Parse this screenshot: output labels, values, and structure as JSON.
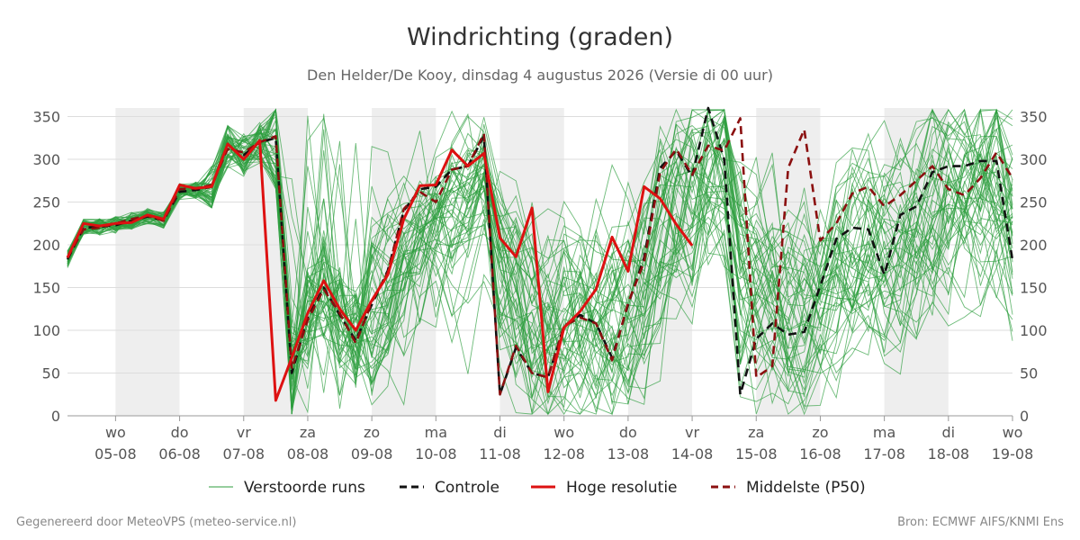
{
  "chart_data": {
    "type": "line",
    "title": "Windrichting (graden)",
    "subtitle": "Den Helder/De Kooy, dinsdag  4 augustus 2026 (Versie di 00 uur)",
    "ylim": [
      0,
      360
    ],
    "yticks": [
      0,
      50,
      100,
      150,
      200,
      250,
      300,
      350
    ],
    "x_range_days": [
      -0.75,
      14.0
    ],
    "x_ticks": [
      {
        "day": 0,
        "label1": "wo",
        "label2": "05-08"
      },
      {
        "day": 1,
        "label1": "do",
        "label2": "06-08"
      },
      {
        "day": 2,
        "label1": "vr",
        "label2": "07-08"
      },
      {
        "day": 3,
        "label1": "za",
        "label2": "08-08"
      },
      {
        "day": 4,
        "label1": "zo",
        "label2": "09-08"
      },
      {
        "day": 5,
        "label1": "ma",
        "label2": "10-08"
      },
      {
        "day": 6,
        "label1": "di",
        "label2": "11-08"
      },
      {
        "day": 7,
        "label1": "wo",
        "label2": "12-08"
      },
      {
        "day": 8,
        "label1": "do",
        "label2": "13-08"
      },
      {
        "day": 9,
        "label1": "vr",
        "label2": "14-08"
      },
      {
        "day": 10,
        "label1": "za",
        "label2": "15-08"
      },
      {
        "day": 11,
        "label1": "zo",
        "label2": "16-08"
      },
      {
        "day": 12,
        "label1": "ma",
        "label2": "17-08"
      },
      {
        "day": 13,
        "label1": "di",
        "label2": "18-08"
      },
      {
        "day": 14,
        "label1": "wo",
        "label2": "19-08"
      }
    ],
    "shaded_days": [
      [
        0,
        1
      ],
      [
        2,
        3
      ],
      [
        4,
        5
      ],
      [
        6,
        7
      ],
      [
        8,
        9
      ],
      [
        10,
        11
      ],
      [
        12,
        13
      ]
    ],
    "grid": true,
    "legend_position": "bottom",
    "series": [
      {
        "name": "Hoge resolutie",
        "color": "#dd1111",
        "style": "solid",
        "x": [
          -0.75,
          -0.5,
          -0.25,
          0,
          0.25,
          0.5,
          0.75,
          1,
          1.25,
          1.5,
          1.75,
          2,
          2.25,
          2.5,
          2.75,
          3,
          3.25,
          3.5,
          3.75,
          4,
          4.25,
          4.5,
          4.75,
          5,
          5.25,
          5.5,
          5.75,
          6,
          6.25,
          6.5,
          6.75,
          7,
          7.25,
          7.5,
          7.75,
          8,
          8.25,
          8.5,
          8.75,
          9
        ],
        "values": [
          185,
          225,
          222,
          225,
          226,
          235,
          230,
          270,
          266,
          268,
          318,
          300,
          322,
          18,
          68,
          120,
          158,
          125,
          100,
          135,
          165,
          230,
          269,
          270,
          311,
          292,
          307,
          208,
          186,
          243,
          28,
          103,
          122,
          148,
          209,
          169,
          268,
          254,
          224,
          199
        ]
      },
      {
        "name": "Controle",
        "color": "#111111",
        "style": "dashed",
        "x": [
          -0.75,
          -0.5,
          -0.25,
          0,
          0.25,
          0.5,
          0.75,
          1,
          1.25,
          1.5,
          1.75,
          2,
          2.25,
          2.5,
          2.75,
          3,
          3.25,
          3.5,
          3.75,
          4,
          4.25,
          4.5,
          4.75,
          5,
          5.25,
          5.5,
          5.75,
          6,
          6.25,
          6.5,
          6.75,
          7,
          7.25,
          7.5,
          7.75,
          8,
          8.25,
          8.5,
          8.75,
          9,
          9.25,
          9.5,
          9.75,
          10,
          10.25,
          10.5,
          10.75,
          11,
          11.25,
          11.5,
          11.75,
          12,
          12.25,
          12.5,
          12.75,
          13,
          13.25,
          13.5,
          13.75,
          14
        ],
        "values": [
          183,
          220,
          221,
          223,
          228,
          233,
          229,
          262,
          264,
          268,
          315,
          305,
          320,
          325,
          50,
          115,
          150,
          118,
          88,
          130,
          170,
          240,
          265,
          268,
          288,
          292,
          327,
          25,
          80,
          50,
          45,
          105,
          118,
          108,
          68,
          130,
          185,
          290,
          310,
          280,
          360,
          300,
          25,
          90,
          108,
          95,
          98,
          152,
          207,
          220,
          218,
          165,
          235,
          245,
          285,
          292,
          292,
          298,
          298,
          182
        ]
      },
      {
        "name": "Middelste (P50)",
        "color": "#8b1010",
        "style": "dashed",
        "x": [
          -0.75,
          -0.5,
          -0.25,
          0,
          0.25,
          0.5,
          0.75,
          1,
          1.25,
          1.5,
          1.75,
          2,
          2.25,
          2.5,
          2.75,
          3,
          3.25,
          3.5,
          3.75,
          4,
          4.25,
          4.5,
          4.75,
          5,
          5.25,
          5.5,
          5.75,
          6,
          6.25,
          6.5,
          6.75,
          7,
          7.25,
          7.5,
          7.75,
          8,
          8.25,
          8.5,
          8.75,
          9,
          9.25,
          9.5,
          9.75,
          10,
          10.25,
          10.5,
          10.75,
          11,
          11.25,
          11.5,
          11.75,
          12,
          12.25,
          12.5,
          12.75,
          13,
          13.25,
          13.5,
          13.75,
          14
        ],
        "values": [
          185,
          218,
          220,
          225,
          230,
          234,
          228,
          265,
          266,
          270,
          312,
          308,
          320,
          327,
          55,
          112,
          148,
          120,
          85,
          133,
          168,
          242,
          262,
          250,
          288,
          292,
          330,
          25,
          82,
          50,
          45,
          105,
          115,
          108,
          65,
          132,
          180,
          285,
          312,
          282,
          316,
          310,
          348,
          45,
          58,
          290,
          335,
          205,
          225,
          260,
          268,
          245,
          258,
          275,
          292,
          265,
          258,
          278,
          308,
          278
        ]
      }
    ],
    "ensemble_series": {
      "name": "Verstoorde runs",
      "color": "#2e9e3e",
      "count": 50,
      "x_start": -0.75,
      "x_step": 0.25,
      "x_end": 14.0
    },
    "legend": [
      {
        "label": "Verstoorde runs",
        "color": "#2e9e3e",
        "style": "thin"
      },
      {
        "label": "Controle",
        "color": "#111111",
        "style": "dashed"
      },
      {
        "label": "Hoge resolutie",
        "color": "#dd1111",
        "style": "solid"
      },
      {
        "label": "Middelste (P50)",
        "color": "#8b1010",
        "style": "dashed"
      }
    ]
  },
  "footer": {
    "left": "Gegenereerd door MeteoVPS (meteo-service.nl)",
    "right": "Bron: ECMWF AIFS/KNMI Ens"
  },
  "colors": {
    "band": "#eeeeee",
    "grid": "#dddddd",
    "axis": "#999999"
  }
}
